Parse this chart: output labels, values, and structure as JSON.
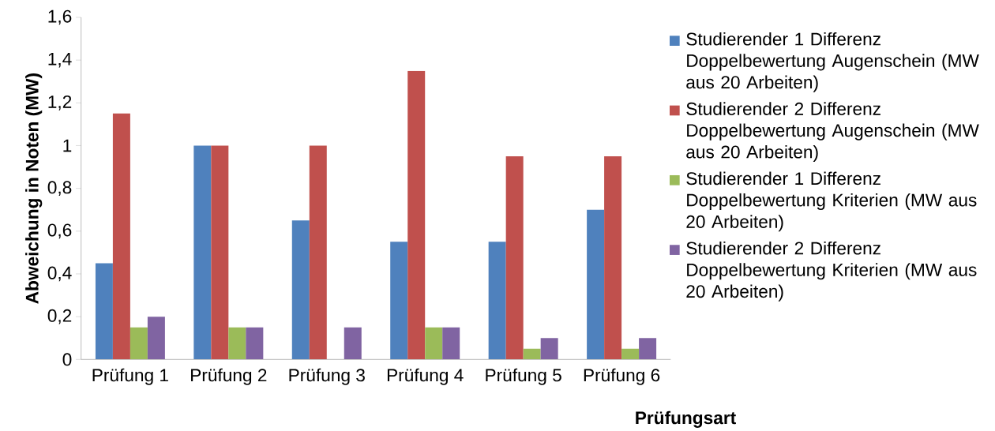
{
  "chart_data": {
    "type": "bar",
    "xlabel": "Prüfungsart",
    "ylabel": "Abweichung in Noten (MW)",
    "categories": [
      "Prüfung 1",
      "Prüfung 2",
      "Prüfung 3",
      "Prüfung 4",
      "Prüfung 5",
      "Prüfung 6"
    ],
    "series": [
      {
        "name": "Studierender 1 Differenz Doppelbewertung Augenschein (MW aus 20 Arbeiten)",
        "color": "#4f81bd",
        "values": [
          0.45,
          1.0,
          0.65,
          0.55,
          0.55,
          0.7
        ]
      },
      {
        "name": "Studierender 2 Differenz Doppelbewertung Augenschein (MW aus 20 Arbeiten)",
        "color": "#c0504d",
        "values": [
          1.15,
          1.0,
          1.0,
          1.35,
          0.95,
          0.95
        ]
      },
      {
        "name": "Studierender 1 Differenz Doppelbewertung Kriterien (MW aus 20 Arbeiten)",
        "color": "#9bbb59",
        "values": [
          0.15,
          0.15,
          0,
          0.15,
          0.05,
          0.05
        ]
      },
      {
        "name": "Studierender 2 Differenz Doppelbewertung Kriterien (MW aus 20 Arbeiten)",
        "color": "#8064a2",
        "values": [
          0.2,
          0.15,
          0.15,
          0.15,
          0.1,
          0.1
        ]
      }
    ],
    "ylim": [
      0,
      1.6
    ],
    "yticks": [
      0,
      {
        "value": 0.2,
        "label": "0,2"
      },
      {
        "value": 0.4,
        "label": "0,4"
      },
      {
        "value": 0.6,
        "label": "0,6"
      },
      {
        "value": 0.8,
        "label": "0,8"
      },
      1,
      {
        "value": 1.2,
        "label": "1,2"
      },
      {
        "value": 1.4,
        "label": "1,4"
      },
      {
        "value": 1.6,
        "label": "1,6"
      }
    ],
    "legend": "right"
  }
}
